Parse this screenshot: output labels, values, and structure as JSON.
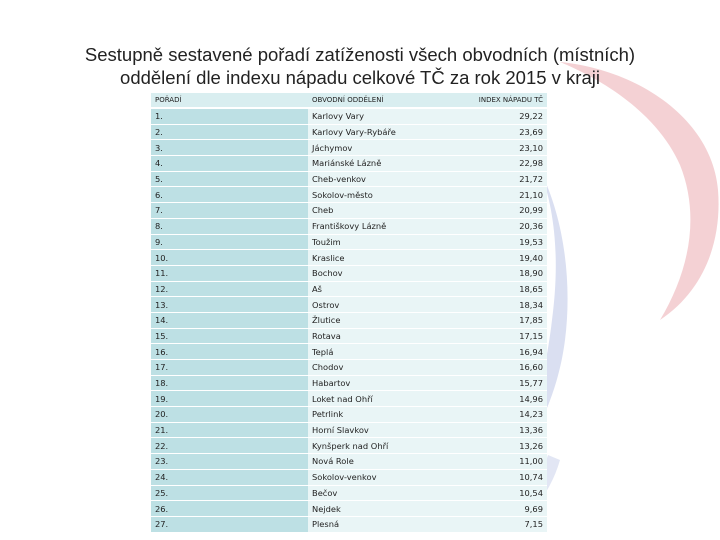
{
  "title": {
    "line1": "Sestupně sestavené pořadí zatíženosti všech obvodních (místních)",
    "line2": "oddělení dle indexu nápadu celkové TČ za rok 2015 v kraji"
  },
  "table": {
    "headers": [
      "POŘADÍ",
      "OBVODNÍ ODDĚLENÍ",
      "INDEX NÁPADU TČ"
    ],
    "rows": [
      [
        "1.",
        "Karlovy Vary",
        "29,22"
      ],
      [
        "2.",
        "Karlovy Vary-Rybáře",
        "23,69"
      ],
      [
        "3.",
        "Jáchymov",
        "23,10"
      ],
      [
        "4.",
        "Mariánské Lázně",
        "22,98"
      ],
      [
        "5.",
        "Cheb-venkov",
        "21,72"
      ],
      [
        "6.",
        "Sokolov-město",
        "21,10"
      ],
      [
        "7.",
        "Cheb",
        "20,99"
      ],
      [
        "8.",
        "Františkovy Lázně",
        "20,36"
      ],
      [
        "9.",
        "Toužim",
        "19,53"
      ],
      [
        "10.",
        "Kraslice",
        "19,40"
      ],
      [
        "11.",
        "Bochov",
        "18,90"
      ],
      [
        "12.",
        "Aš",
        "18,65"
      ],
      [
        "13.",
        "Ostrov",
        "18,34"
      ],
      [
        "14.",
        "Žlutice",
        "17,85"
      ],
      [
        "15.",
        "Rotava",
        "17,15"
      ],
      [
        "16.",
        "Teplá",
        "16,94"
      ],
      [
        "17.",
        "Chodov",
        "16,60"
      ],
      [
        "18.",
        "Habartov",
        "15,77"
      ],
      [
        "19.",
        "Loket nad Ohří",
        "14,96"
      ],
      [
        "20.",
        "Petrlink",
        "14,23"
      ],
      [
        "21.",
        "Horní Slavkov",
        "13,36"
      ],
      [
        "22.",
        "Kynšperk nad Ohří",
        "13,26"
      ],
      [
        "23.",
        "Nová Role",
        "11,00"
      ],
      [
        "24.",
        "Sokolov-venkov",
        "10,74"
      ],
      [
        "25.",
        "Bečov",
        "10,54"
      ],
      [
        "26.",
        "Nejdek",
        "9,69"
      ],
      [
        "27.",
        "Plesná",
        "7,15"
      ]
    ]
  },
  "colors": {
    "rank_cell": "#bde0e4",
    "body_cell": "#e9f5f6",
    "header_cell": "#d9eef0",
    "deco_red": "#f2c9cc",
    "deco_blue": "#d6dcef"
  }
}
